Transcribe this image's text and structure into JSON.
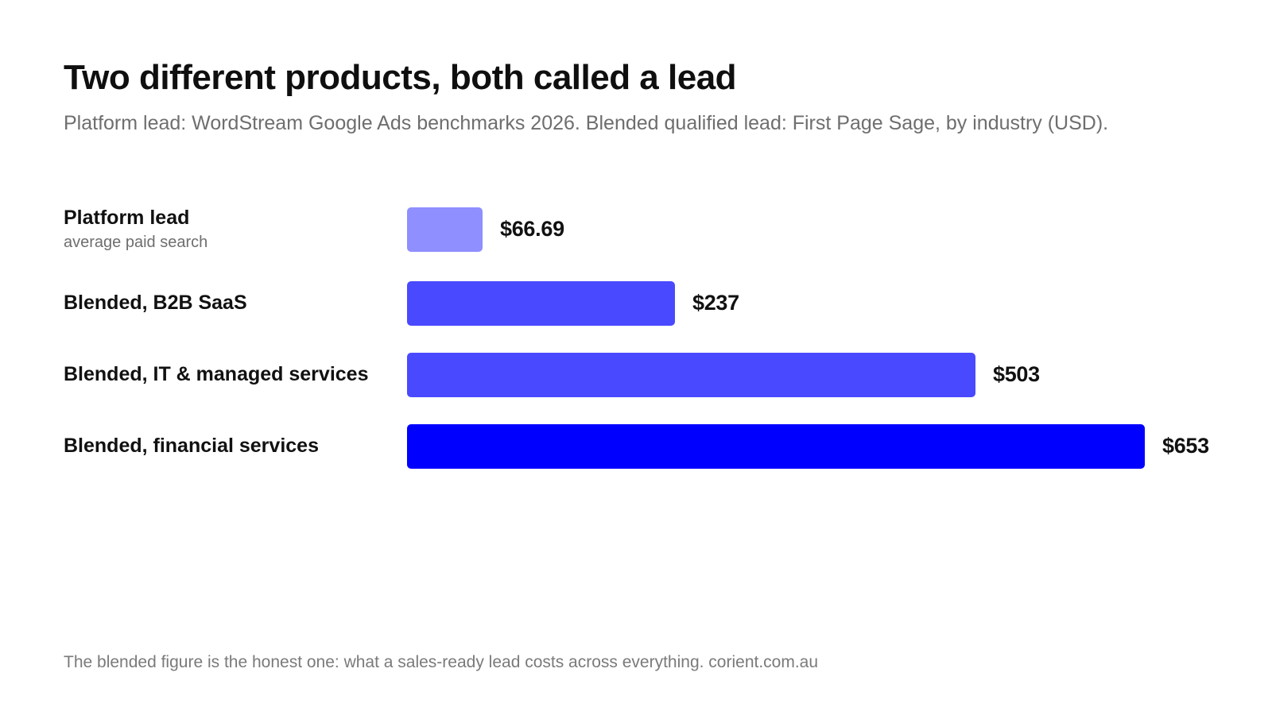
{
  "title": "Two different products, both called a lead",
  "subtitle": "Platform lead: WordStream Google Ads benchmarks 2026. Blended qualified lead: First Page Sage, by industry (USD).",
  "footer": "The blended figure is the honest one: what a sales-ready lead costs across everything. corient.com.au",
  "chart_data": {
    "type": "bar",
    "orientation": "horizontal",
    "title": "Two different products, both called a lead",
    "subtitle": "Platform lead: WordStream Google Ads benchmarks 2026. Blended qualified lead: First Page Sage, by industry (USD).",
    "xlabel": "",
    "ylabel": "",
    "grid": false,
    "xlim": [
      0,
      653
    ],
    "categories": [
      "Platform lead",
      "Blended, B2B SaaS",
      "Blended, IT & managed services",
      "Blended, financial services"
    ],
    "sublabels": [
      "average paid search",
      "",
      "",
      ""
    ],
    "values": [
      66.69,
      237,
      503,
      653
    ],
    "value_labels": [
      "$66.69",
      "$237",
      "$503",
      "$653"
    ],
    "colors": [
      "#8f8fff",
      "#4949ff",
      "#4949ff",
      "#0000ff"
    ]
  }
}
